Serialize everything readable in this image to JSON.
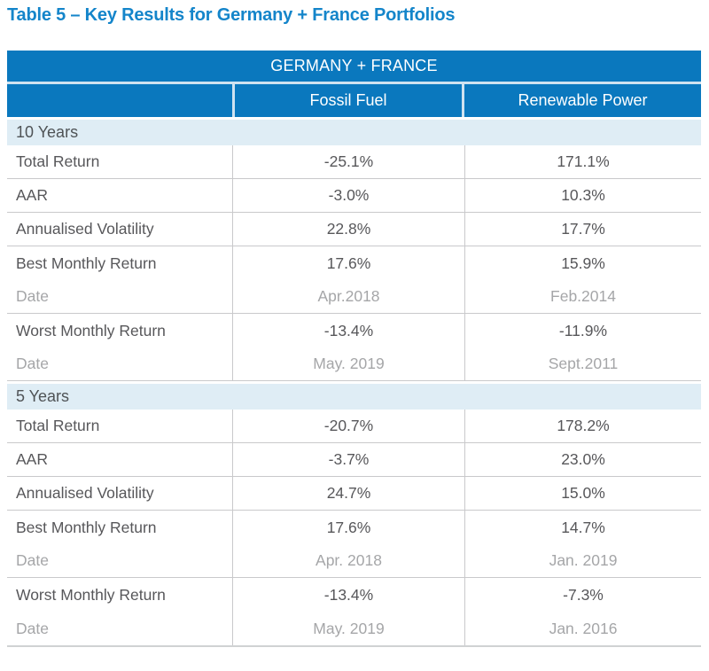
{
  "title": "Table 5 – Key Results for Germany + France Portfolios",
  "table": {
    "header": "GERMANY + FRANCE",
    "columns": [
      "Fossil Fuel",
      "Renewable Power"
    ],
    "sections": [
      {
        "label": "10 Years",
        "rows": [
          {
            "label": "Total Return",
            "fossil_fuel": "-25.1%",
            "renewable_power": "171.1%",
            "muted": false,
            "divider": true
          },
          {
            "label": "AAR",
            "fossil_fuel": "-3.0%",
            "renewable_power": "10.3%",
            "muted": false,
            "divider": true
          },
          {
            "label": "Annualised Volatility",
            "fossil_fuel": "22.8%",
            "renewable_power": "17.7%",
            "muted": false,
            "divider": true
          },
          {
            "label": "Best Monthly Return",
            "fossil_fuel": "17.6%",
            "renewable_power": "15.9%",
            "muted": false,
            "divider": false
          },
          {
            "label": "Date",
            "fossil_fuel": "Apr.2018",
            "renewable_power": "Feb.2014",
            "muted": true,
            "divider": true
          },
          {
            "label": "Worst Monthly Return",
            "fossil_fuel": "-13.4%",
            "renewable_power": "-11.9%",
            "muted": false,
            "divider": false
          },
          {
            "label": "Date",
            "fossil_fuel": "May. 2019",
            "renewable_power": "Sept.2011",
            "muted": true,
            "divider": true
          }
        ]
      },
      {
        "label": "5 Years",
        "rows": [
          {
            "label": "Total Return",
            "fossil_fuel": "-20.7%",
            "renewable_power": "178.2%",
            "muted": false,
            "divider": true
          },
          {
            "label": "AAR",
            "fossil_fuel": "-3.7%",
            "renewable_power": "23.0%",
            "muted": false,
            "divider": true
          },
          {
            "label": "Annualised Volatility",
            "fossil_fuel": "24.7%",
            "renewable_power": "15.0%",
            "muted": false,
            "divider": true
          },
          {
            "label": "Best Monthly Return",
            "fossil_fuel": "17.6%",
            "renewable_power": "14.7%",
            "muted": false,
            "divider": false
          },
          {
            "label": "Date",
            "fossil_fuel": "Apr. 2018",
            "renewable_power": "Jan. 2019",
            "muted": true,
            "divider": true
          },
          {
            "label": "Worst Monthly Return",
            "fossil_fuel": "-13.4%",
            "renewable_power": "-7.3%",
            "muted": false,
            "divider": false
          },
          {
            "label": "Date",
            "fossil_fuel": "May. 2019",
            "renewable_power": "Jan. 2016",
            "muted": true,
            "divider": true
          }
        ]
      }
    ]
  },
  "colors": {
    "title_blue": "#1485CA",
    "header_blue": "#0A78BE",
    "header_separator": "#CFE2F0",
    "section_band": "#DFEDF5",
    "body_text": "#57575A",
    "muted_text": "#A5A6A8",
    "divider_gray": "#C9C9CB",
    "table_bottom": "#D0D2D3"
  }
}
